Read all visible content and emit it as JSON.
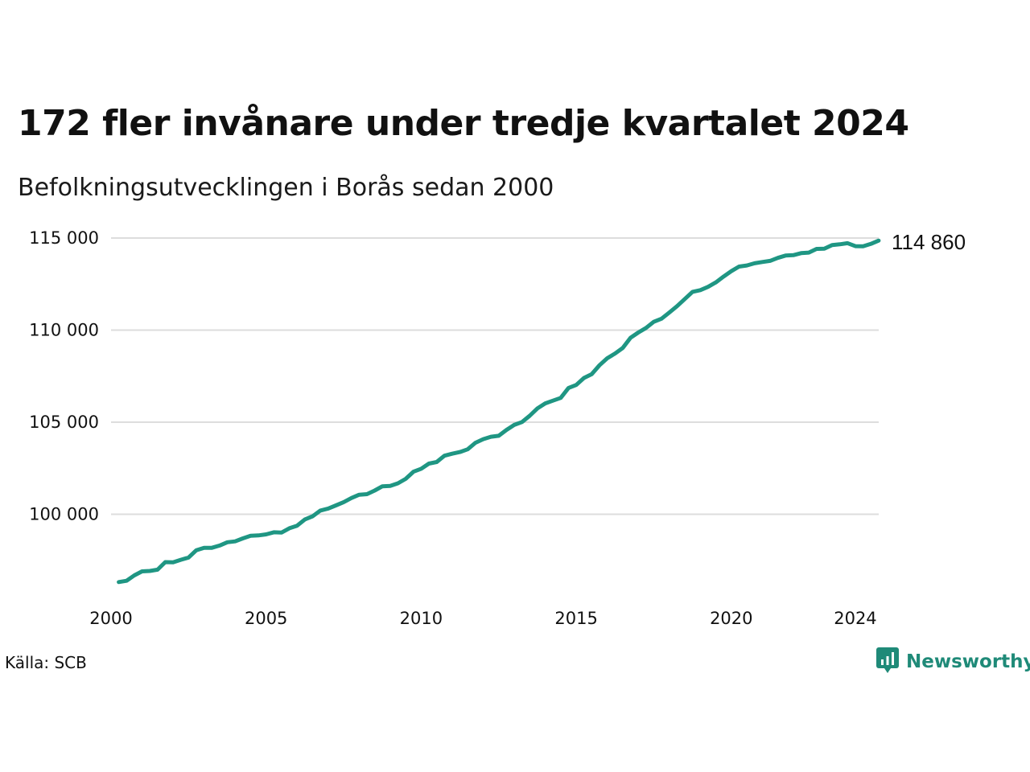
{
  "title": "172 fler invånare under tredje kvartalet 2024",
  "subtitle": "Befolkningsutvecklingen i Borås sedan 2000",
  "source": "Källa: SCB",
  "brand": {
    "name": "Newsworthy",
    "color": "#1f8a78",
    "icon": "chart-bubble-icon"
  },
  "chart_data": {
    "type": "line",
    "title": "172 fler invånare under tredje kvartalet 2024",
    "subtitle": "Befolkningsutvecklingen i Borås sedan 2000",
    "xlabel": "",
    "ylabel": "",
    "xlim": [
      2000,
      2024.75
    ],
    "ylim": [
      96000,
      115600
    ],
    "x_ticks": [
      2000,
      2005,
      2010,
      2015,
      2020,
      2024
    ],
    "y_ticks": [
      100000,
      105000,
      110000,
      115000
    ],
    "y_tick_labels": [
      "100 000",
      "105 000",
      "110 000",
      "115 000"
    ],
    "grid": "horizontal",
    "line_color": "#1f9683",
    "end_label": "114 860",
    "series": [
      {
        "x": [
          2000.25,
          2000.5,
          2000.75,
          2001.0,
          2001.25,
          2001.5,
          2001.75,
          2002.0,
          2002.25,
          2002.5,
          2002.75,
          2003.0,
          2003.25,
          2003.5,
          2003.75,
          2004.0,
          2004.25,
          2004.5,
          2004.75,
          2005.0,
          2005.25,
          2005.5,
          2005.75,
          2006.0,
          2006.25,
          2006.5,
          2006.75,
          2007.0,
          2007.25,
          2007.5,
          2007.75,
          2008.0,
          2008.25,
          2008.5,
          2008.75,
          2009.0,
          2009.25,
          2009.5,
          2009.75,
          2010.0,
          2010.25,
          2010.5,
          2010.75,
          2011.0,
          2011.25,
          2011.5,
          2011.75,
          2012.0,
          2012.25,
          2012.5,
          2012.75,
          2013.0,
          2013.25,
          2013.5,
          2013.75,
          2014.0,
          2014.25,
          2014.5,
          2014.75,
          2015.0,
          2015.25,
          2015.5,
          2015.75,
          2016.0,
          2016.25,
          2016.5,
          2016.75,
          2017.0,
          2017.25,
          2017.5,
          2017.75,
          2018.0,
          2018.25,
          2018.5,
          2018.75,
          2019.0,
          2019.25,
          2019.5,
          2019.75,
          2020.0,
          2020.25,
          2020.5,
          2020.75,
          2021.0,
          2021.25,
          2021.5,
          2021.75,
          2022.0,
          2022.25,
          2022.5,
          2022.75,
          2023.0,
          2023.25,
          2023.5,
          2023.75,
          2024.0,
          2024.25,
          2024.5,
          2024.75
        ],
        "values": [
          96320,
          96390,
          96680,
          96900,
          96920,
          96990,
          97400,
          97390,
          97530,
          97650,
          98050,
          98180,
          98180,
          98300,
          98480,
          98530,
          98690,
          98830,
          98850,
          98910,
          99020,
          99010,
          99240,
          99380,
          99720,
          99890,
          100200,
          100310,
          100480,
          100660,
          100880,
          101060,
          101090,
          101290,
          101520,
          101540,
          101680,
          101920,
          102310,
          102470,
          102750,
          102840,
          103180,
          103290,
          103380,
          103530,
          103880,
          104080,
          104210,
          104260,
          104580,
          104850,
          105010,
          105350,
          105750,
          106020,
          106170,
          106320,
          106860,
          107020,
          107400,
          107610,
          108090,
          108470,
          108730,
          109030,
          109580,
          109870,
          110120,
          110450,
          110620,
          110950,
          111300,
          111690,
          112080,
          112170,
          112350,
          112590,
          112910,
          113200,
          113450,
          113510,
          113630,
          113700,
          113760,
          113920,
          114050,
          114070,
          114180,
          114210,
          114410,
          114420,
          114620,
          114660,
          114720,
          114560,
          114550,
          114680,
          114860
        ]
      }
    ]
  }
}
